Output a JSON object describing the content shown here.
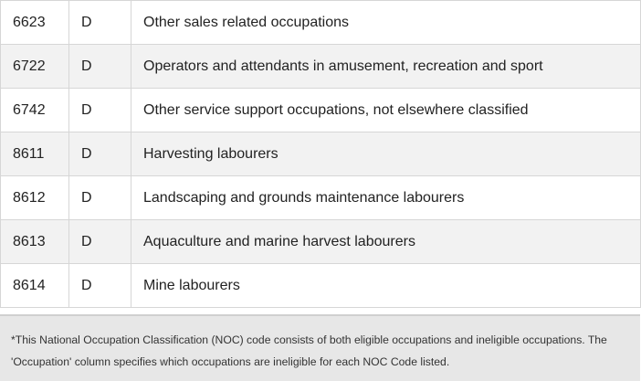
{
  "table": {
    "rows": [
      {
        "code": "6623",
        "level": "D",
        "occupation": "Other sales related occupations"
      },
      {
        "code": "6722",
        "level": "D",
        "occupation": "Operators and attendants in amusement, recreation and sport"
      },
      {
        "code": "6742",
        "level": "D",
        "occupation": "Other service support occupations, not elsewhere classified"
      },
      {
        "code": "8611",
        "level": "D",
        "occupation": "Harvesting labourers"
      },
      {
        "code": "8612",
        "level": "D",
        "occupation": "Landscaping and grounds maintenance labourers"
      },
      {
        "code": "8613",
        "level": "D",
        "occupation": "Aquaculture and marine harvest labourers"
      },
      {
        "code": "8614",
        "level": "D",
        "occupation": "Mine labourers"
      }
    ]
  },
  "footnote": {
    "text": "*This National Occupation Classification (NOC) code consists of both eligible occupations and ineligible occupations. The 'Occupation' column specifies which occupations are ineligible for each NOC Code listed."
  }
}
